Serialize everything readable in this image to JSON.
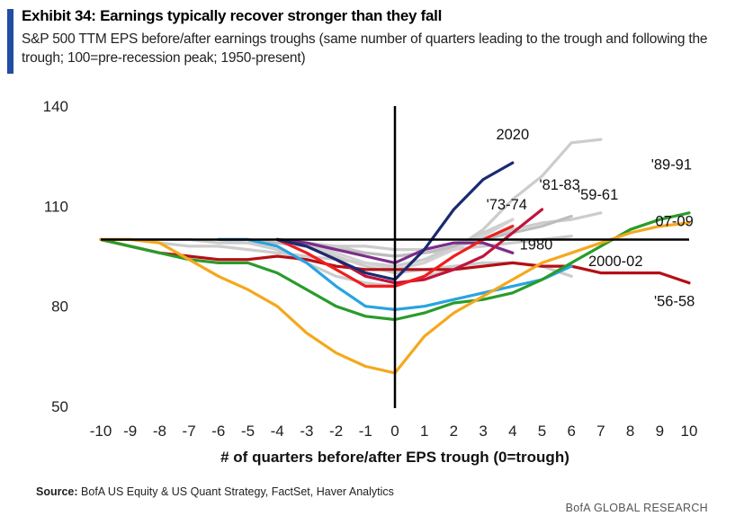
{
  "header": {
    "title": "Exhibit 34: Earnings typically recover stronger than they fall",
    "subtitle": "S&P 500 TTM EPS before/after earnings troughs (same number of quarters leading to the trough and following the trough; 100=pre-recession peak; 1950-present)"
  },
  "footer": {
    "source_label": "Source:",
    "source_text": "BofA US Equity & US Quant Strategy, FactSet, Haver Analytics",
    "brand": "BofA GLOBAL RESEARCH"
  },
  "colors": {
    "accent": "#1f4ea3",
    "baseline": "#000000"
  },
  "chart_data": {
    "type": "line",
    "xlabel": "# of quarters before/after EPS trough (0=trough)",
    "ylabel": "",
    "xlim": [
      -10,
      10
    ],
    "ylim": [
      50,
      140
    ],
    "x_ticks": [
      "-10",
      "-9",
      "-8",
      "-7",
      "-6",
      "-5",
      "-4",
      "-3",
      "-2",
      "-1",
      "0",
      "1",
      "2",
      "3",
      "4",
      "5",
      "6",
      "7",
      "8",
      "9",
      "10"
    ],
    "y_ticks": [
      "50",
      "80",
      "110",
      "140"
    ],
    "reference_line": 100,
    "grid": false,
    "series": [
      {
        "name": "",
        "color": "#cccccc",
        "x": [
          -10,
          -9,
          -8,
          -7,
          -6,
          -5,
          -4,
          -3,
          -2,
          -1,
          0,
          1,
          2,
          3,
          4,
          5,
          6,
          7
        ],
        "values": [
          100,
          100,
          99,
          98,
          98,
          97,
          96,
          95,
          94,
          93,
          92,
          94,
          97,
          103,
          112,
          119,
          129,
          130
        ]
      },
      {
        "name": "",
        "color": "#cccccc",
        "x": [
          -10,
          -9,
          -8,
          -7,
          -6,
          -5,
          -4,
          -3,
          -2,
          -1,
          0,
          1,
          2,
          3,
          4,
          5,
          6,
          7
        ],
        "values": [
          100,
          100,
          100,
          100,
          99,
          99,
          99,
          98,
          98,
          98,
          97,
          97,
          99,
          100,
          103,
          105,
          106,
          108
        ]
      },
      {
        "name": "",
        "color": "#cccccc",
        "x": [
          -4,
          -3,
          -2,
          -1,
          0,
          1,
          2,
          3,
          4,
          5,
          6
        ],
        "values": [
          100,
          99,
          98,
          96,
          95,
          96,
          97,
          98,
          99,
          100,
          101
        ]
      },
      {
        "name": "",
        "color": "#cccccc",
        "x": [
          -6,
          -5,
          -4,
          -3,
          -2,
          -1,
          0,
          1,
          2
        ],
        "values": [
          100,
          99,
          97,
          93,
          89,
          87,
          86,
          89,
          91
        ]
      },
      {
        "name": "",
        "color": "#cccccc",
        "x": [
          -4,
          -3,
          -2,
          -1,
          0,
          1,
          2,
          3,
          4,
          5,
          6
        ],
        "values": [
          100,
          98,
          95,
          92,
          90,
          91,
          92,
          93,
          93,
          92,
          89
        ]
      },
      {
        "name": "",
        "color": "#cccccc",
        "x": [
          0,
          1,
          2,
          3,
          4
        ],
        "values": [
          92,
          94,
          98,
          102,
          106
        ]
      },
      {
        "name": "'59-61",
        "color": "#bdbdbd",
        "x": [
          -6,
          -5,
          -4,
          -3,
          -2,
          -1,
          0,
          1,
          2,
          3,
          4,
          5,
          6
        ],
        "values": [
          100,
          100,
          99,
          98,
          97,
          96,
          95,
          96,
          98,
          100,
          102,
          104,
          107
        ]
      },
      {
        "name": "'73-74",
        "color": "#d2d2d2",
        "x": [
          -4,
          -3,
          -2,
          -1,
          0,
          1,
          2,
          3,
          4
        ],
        "values": [
          100,
          98,
          96,
          93,
          91,
          93,
          97,
          101,
          106
        ]
      },
      {
        "name": "1980",
        "color": "#7b2d8a",
        "x": [
          -4,
          -3,
          -2,
          -1,
          0,
          1,
          2,
          3,
          4
        ],
        "values": [
          100,
          99,
          97,
          95,
          93,
          97,
          99,
          99,
          96
        ]
      },
      {
        "name": "'56-58",
        "color": "#b40f14",
        "x": [
          -10,
          -9,
          -8,
          -7,
          -6,
          -5,
          -4,
          -3,
          -2,
          -1,
          0,
          1,
          2,
          3,
          4,
          5,
          6,
          7,
          8,
          9,
          10
        ],
        "values": [
          100,
          98,
          96,
          95,
          94,
          94,
          95,
          94,
          92,
          91,
          91,
          91,
          91,
          92,
          93,
          92,
          92,
          90,
          90,
          90,
          87
        ]
      },
      {
        "name": "'81-83",
        "color": "#c0143c",
        "x": [
          -4,
          -3,
          -2,
          -1,
          0,
          1,
          2,
          3,
          4,
          5
        ],
        "values": [
          100,
          98,
          94,
          89,
          87,
          88,
          91,
          95,
          102,
          109
        ]
      },
      {
        "name": "2000-02",
        "color": "#29a3e0",
        "x": [
          -6,
          -5,
          -4,
          -3,
          -2,
          -1,
          0,
          1,
          2,
          3,
          4,
          5,
          6
        ],
        "values": [
          100,
          100,
          98,
          93,
          86,
          80,
          79,
          80,
          82,
          84,
          86,
          88,
          92
        ]
      },
      {
        "name": "",
        "color": "#f01e1e",
        "x": [
          -4,
          -3,
          -2,
          -1,
          0,
          1,
          2,
          3,
          4
        ],
        "values": [
          100,
          96,
          91,
          86,
          86,
          89,
          95,
          100,
          104
        ]
      },
      {
        "name": "'89-91",
        "color": "#2a9b2a",
        "x": [
          -10,
          -9,
          -8,
          -7,
          -6,
          -5,
          -4,
          -3,
          -2,
          -1,
          0,
          1,
          2,
          3,
          4,
          5,
          6,
          7,
          8,
          9,
          10
        ],
        "values": [
          100,
          98,
          96,
          94,
          93,
          93,
          90,
          85,
          80,
          77,
          76,
          78,
          81,
          82,
          84,
          88,
          93,
          98,
          103,
          106,
          108
        ]
      },
      {
        "name": "07-09",
        "color": "#f5a81c",
        "x": [
          -10,
          -9,
          -8,
          -7,
          -6,
          -5,
          -4,
          -3,
          -2,
          -1,
          0,
          1,
          2,
          3,
          4,
          5,
          6,
          7,
          8,
          9,
          10
        ],
        "values": [
          100,
          100,
          99,
          94,
          89,
          85,
          80,
          72,
          66,
          62,
          60,
          71,
          78,
          83,
          88,
          93,
          96,
          99,
          102,
          104,
          105
        ]
      },
      {
        "name": "2020",
        "color": "#1a2a73",
        "x": [
          -4,
          -3,
          -2,
          -1,
          0,
          1,
          2,
          3,
          4
        ],
        "values": [
          100,
          98,
          94,
          90,
          88,
          97,
          109,
          118,
          123
        ]
      }
    ],
    "annotations": [
      {
        "text": "2020",
        "x": 4.0,
        "y": 130
      },
      {
        "text": "'81-83",
        "x": 5.6,
        "y": 115
      },
      {
        "text": "'59-61",
        "x": 6.9,
        "y": 112
      },
      {
        "text": "'73-74",
        "x": 3.8,
        "y": 109
      },
      {
        "text": "'89-91",
        "x": 9.4,
        "y": 121
      },
      {
        "text": "07-09",
        "x": 9.5,
        "y": 104
      },
      {
        "text": "1980",
        "x": 4.8,
        "y": 97
      },
      {
        "text": "2000-02",
        "x": 7.5,
        "y": 92
      },
      {
        "text": "'56-58",
        "x": 9.5,
        "y": 80
      }
    ]
  }
}
